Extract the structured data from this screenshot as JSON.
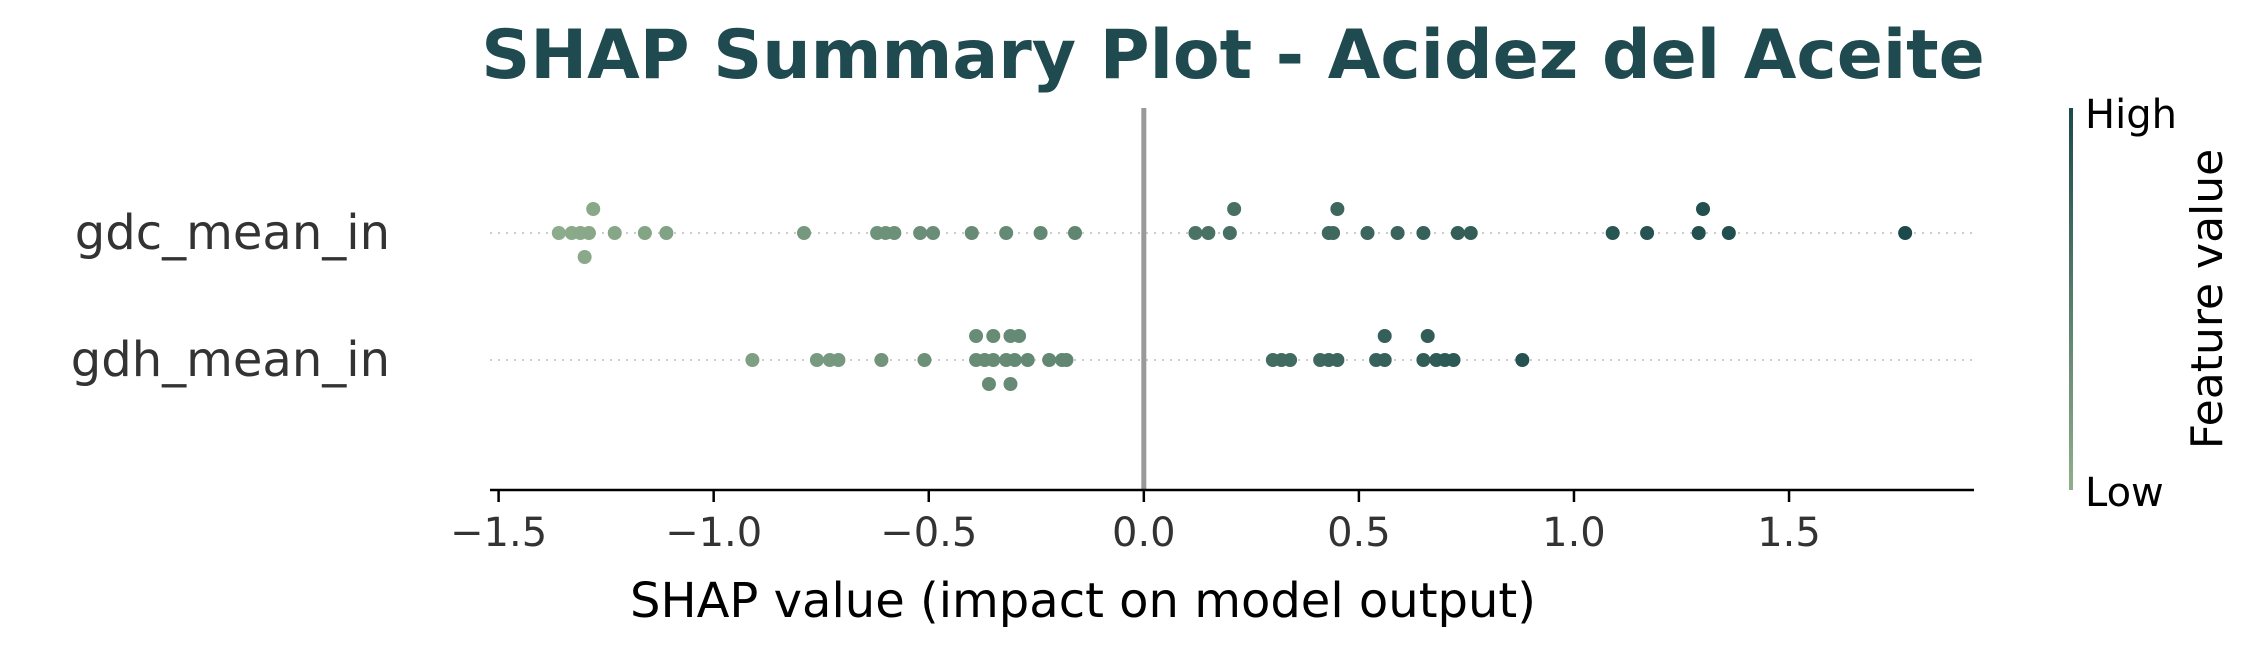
{
  "chart_data": {
    "type": "scatter",
    "subtype": "shap-beeswarm",
    "title": "SHAP Summary Plot - Acidez del Aceite",
    "xlabel": "SHAP value (impact on model output)",
    "xlim": [
      -1.52,
      1.93
    ],
    "xticks": [
      -1.5,
      -1.0,
      -0.5,
      0.0,
      0.5,
      1.0,
      1.5
    ],
    "xtick_labels": [
      "−1.5",
      "−1.0",
      "−0.5",
      "0.0",
      "0.5",
      "1.0",
      "1.5"
    ],
    "zero_line": true,
    "grid": false,
    "features": [
      "gdc_mean_in",
      "gdh_mean_in"
    ],
    "colorbar": {
      "label": "Feature value",
      "high_label": "High",
      "low_label": "Low",
      "low_color": "#8fae8c",
      "high_color": "#1c4a4b"
    },
    "series": [
      {
        "name": "gdc_mean_in",
        "points": [
          {
            "x": -1.36,
            "offset": 0,
            "v": 0.02
          },
          {
            "x": -1.33,
            "offset": 0,
            "v": 0.04
          },
          {
            "x": -1.31,
            "offset": 0,
            "v": 0.05
          },
          {
            "x": -1.29,
            "offset": 0,
            "v": 0.06
          },
          {
            "x": -1.28,
            "offset": 1,
            "v": 0.06
          },
          {
            "x": -1.3,
            "offset": -1,
            "v": 0.05
          },
          {
            "x": -1.23,
            "offset": 0,
            "v": 0.08
          },
          {
            "x": -1.16,
            "offset": 0,
            "v": 0.1
          },
          {
            "x": -1.11,
            "offset": 0,
            "v": 0.12
          },
          {
            "x": -0.79,
            "offset": 0,
            "v": 0.22
          },
          {
            "x": -0.62,
            "offset": 0,
            "v": 0.28
          },
          {
            "x": -0.6,
            "offset": 0,
            "v": 0.29
          },
          {
            "x": -0.58,
            "offset": 0,
            "v": 0.3
          },
          {
            "x": -0.52,
            "offset": 0,
            "v": 0.32
          },
          {
            "x": -0.49,
            "offset": 0,
            "v": 0.33
          },
          {
            "x": -0.4,
            "offset": 0,
            "v": 0.35
          },
          {
            "x": -0.32,
            "offset": 0,
            "v": 0.37
          },
          {
            "x": -0.24,
            "offset": 0,
            "v": 0.39
          },
          {
            "x": -0.16,
            "offset": 0,
            "v": 0.41
          },
          {
            "x": 0.12,
            "offset": 0,
            "v": 0.6
          },
          {
            "x": 0.15,
            "offset": 0,
            "v": 0.61
          },
          {
            "x": 0.2,
            "offset": 0,
            "v": 0.63
          },
          {
            "x": 0.21,
            "offset": 1,
            "v": 0.63
          },
          {
            "x": 0.43,
            "offset": 0,
            "v": 0.7
          },
          {
            "x": 0.44,
            "offset": 0,
            "v": 0.7
          },
          {
            "x": 0.45,
            "offset": 1,
            "v": 0.71
          },
          {
            "x": 0.52,
            "offset": 0,
            "v": 0.73
          },
          {
            "x": 0.59,
            "offset": 0,
            "v": 0.75
          },
          {
            "x": 0.65,
            "offset": 0,
            "v": 0.77
          },
          {
            "x": 0.73,
            "offset": 0,
            "v": 0.79
          },
          {
            "x": 0.76,
            "offset": 0,
            "v": 0.8
          },
          {
            "x": 1.09,
            "offset": 0,
            "v": 0.89
          },
          {
            "x": 1.17,
            "offset": 0,
            "v": 0.91
          },
          {
            "x": 1.29,
            "offset": 0,
            "v": 0.94
          },
          {
            "x": 1.3,
            "offset": 1,
            "v": 0.95
          },
          {
            "x": 1.36,
            "offset": 0,
            "v": 0.96
          },
          {
            "x": 1.77,
            "offset": 0,
            "v": 1.0
          }
        ]
      },
      {
        "name": "gdh_mean_in",
        "points": [
          {
            "x": -0.91,
            "offset": 0,
            "v": 0.15
          },
          {
            "x": -0.76,
            "offset": 0,
            "v": 0.2
          },
          {
            "x": -0.73,
            "offset": 0,
            "v": 0.21
          },
          {
            "x": -0.71,
            "offset": 0,
            "v": 0.22
          },
          {
            "x": -0.61,
            "offset": 0,
            "v": 0.26
          },
          {
            "x": -0.51,
            "offset": 0,
            "v": 0.3
          },
          {
            "x": -0.39,
            "offset": 1,
            "v": 0.34
          },
          {
            "x": -0.35,
            "offset": 1,
            "v": 0.35
          },
          {
            "x": -0.31,
            "offset": 1,
            "v": 0.36
          },
          {
            "x": -0.29,
            "offset": 1,
            "v": 0.37
          },
          {
            "x": -0.39,
            "offset": 0,
            "v": 0.34
          },
          {
            "x": -0.37,
            "offset": 0,
            "v": 0.35
          },
          {
            "x": -0.35,
            "offset": 0,
            "v": 0.35
          },
          {
            "x": -0.32,
            "offset": 0,
            "v": 0.36
          },
          {
            "x": -0.3,
            "offset": 0,
            "v": 0.37
          },
          {
            "x": -0.27,
            "offset": 0,
            "v": 0.38
          },
          {
            "x": -0.22,
            "offset": 0,
            "v": 0.39
          },
          {
            "x": -0.19,
            "offset": 0,
            "v": 0.4
          },
          {
            "x": -0.18,
            "offset": 0,
            "v": 0.4
          },
          {
            "x": -0.36,
            "offset": -1,
            "v": 0.35
          },
          {
            "x": -0.31,
            "offset": -1,
            "v": 0.36
          },
          {
            "x": 0.3,
            "offset": 0,
            "v": 0.66
          },
          {
            "x": 0.32,
            "offset": 0,
            "v": 0.67
          },
          {
            "x": 0.34,
            "offset": 0,
            "v": 0.68
          },
          {
            "x": 0.41,
            "offset": 0,
            "v": 0.7
          },
          {
            "x": 0.43,
            "offset": 0,
            "v": 0.71
          },
          {
            "x": 0.45,
            "offset": 0,
            "v": 0.72
          },
          {
            "x": 0.54,
            "offset": 0,
            "v": 0.76
          },
          {
            "x": 0.56,
            "offset": 0,
            "v": 0.77
          },
          {
            "x": 0.56,
            "offset": 1,
            "v": 0.78
          },
          {
            "x": 0.65,
            "offset": 0,
            "v": 0.81
          },
          {
            "x": 0.66,
            "offset": 1,
            "v": 0.82
          },
          {
            "x": 0.68,
            "offset": 0,
            "v": 0.83
          },
          {
            "x": 0.7,
            "offset": 0,
            "v": 0.84
          },
          {
            "x": 0.72,
            "offset": 0,
            "v": 0.85
          },
          {
            "x": 0.88,
            "offset": 0,
            "v": 0.92
          }
        ]
      }
    ]
  }
}
